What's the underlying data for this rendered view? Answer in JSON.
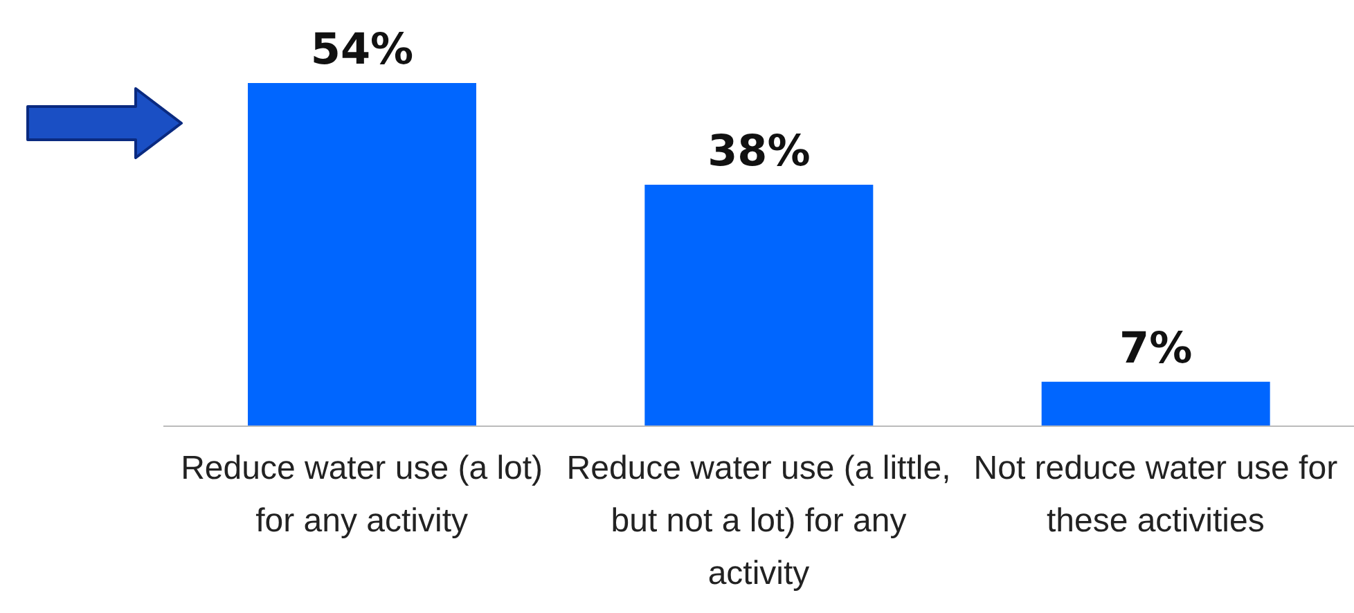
{
  "chart_data": {
    "type": "bar",
    "categories": [
      "Reduce water use (a lot) for any activity",
      "Reduce water use (a little, but not a lot) for any activity",
      "Not reduce water use for these activities"
    ],
    "values": [
      54,
      38,
      7
    ],
    "value_labels": [
      "54%",
      "38%",
      "7%"
    ],
    "color": "#0066ff",
    "grid": false,
    "legend": false
  }
}
